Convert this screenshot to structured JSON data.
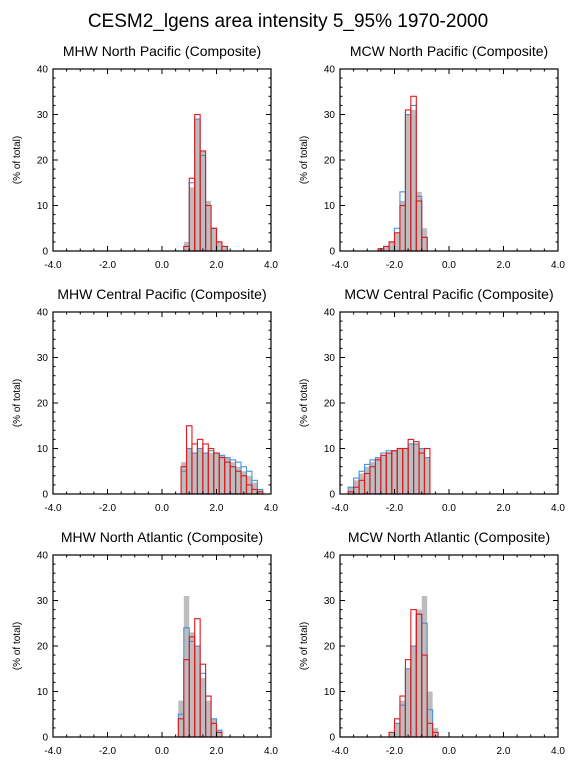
{
  "title": "CESM2_lgens area intensity 5_95% 1970-2000",
  "chart_data": [
    {
      "type": "histogram",
      "title": "MHW North Pacific (Composite)",
      "ylabel": "(% of total)",
      "xlim": [
        -4,
        4
      ],
      "ylim": [
        0,
        40
      ],
      "xticks": [
        "-4.0",
        "-2.0",
        "0.0",
        "2.0",
        "4.0"
      ],
      "yticks": [
        "0",
        "10",
        "20",
        "30",
        "40"
      ],
      "bin_start": 0.8,
      "bin_width": 0.2,
      "series": [
        {
          "color": "#bdbdbd",
          "values": [
            2,
            14,
            29,
            22,
            11,
            5,
            2,
            1
          ]
        },
        {
          "color": "#4a90d9",
          "values": [
            1,
            15,
            29,
            21,
            10,
            5,
            2,
            1
          ]
        },
        {
          "color": "#e0191c",
          "values": [
            1,
            16,
            30,
            22,
            10,
            5,
            2,
            1
          ]
        }
      ]
    },
    {
      "type": "histogram",
      "title": "MCW North Pacific (Composite)",
      "ylabel": "(% of total)",
      "xlim": [
        -4,
        4
      ],
      "ylim": [
        0,
        40
      ],
      "xticks": [
        "-4.0",
        "-2.0",
        "0.0",
        "2.0",
        "4.0"
      ],
      "yticks": [
        "0",
        "10",
        "20",
        "30",
        "40"
      ],
      "bin_start": -2.6,
      "bin_width": 0.2,
      "series": [
        {
          "color": "#bdbdbd",
          "values": [
            0.5,
            1,
            2,
            4,
            11,
            30,
            31,
            13,
            5
          ]
        },
        {
          "color": "#4a90d9",
          "values": [
            0.5,
            1,
            2,
            5,
            13,
            30,
            32,
            12,
            3
          ]
        },
        {
          "color": "#e0191c",
          "values": [
            0.5,
            1,
            2,
            4,
            10,
            31,
            34,
            11,
            3
          ]
        }
      ]
    },
    {
      "type": "histogram",
      "title": "MHW Central Pacific (Composite)",
      "ylabel": "(% of total)",
      "xlim": [
        -4,
        4
      ],
      "ylim": [
        0,
        40
      ],
      "xticks": [
        "-4.0",
        "-2.0",
        "0.0",
        "2.0",
        "4.0"
      ],
      "yticks": [
        "0",
        "10",
        "20",
        "30",
        "40"
      ],
      "bin_start": 0.7,
      "bin_width": 0.2,
      "series": [
        {
          "color": "#bdbdbd",
          "values": [
            7,
            10,
            9,
            10,
            9,
            9,
            9,
            8.5,
            8,
            7,
            6,
            5,
            4,
            2.5,
            1
          ]
        },
        {
          "color": "#4a90d9",
          "values": [
            5,
            10,
            9,
            10,
            9,
            9.5,
            9,
            8.5,
            8,
            7.5,
            7,
            6,
            5,
            3,
            1
          ]
        },
        {
          "color": "#e0191c",
          "values": [
            6,
            15,
            11,
            12,
            11,
            10,
            9,
            8,
            7,
            6,
            5,
            4,
            2,
            1,
            0.5
          ]
        }
      ]
    },
    {
      "type": "histogram",
      "title": "MCW Central Pacific (Composite)",
      "ylabel": "(% of total)",
      "xlim": [
        -4,
        4
      ],
      "ylim": [
        0,
        40
      ],
      "xticks": [
        "-4.0",
        "-2.0",
        "0.0",
        "2.0",
        "4.0"
      ],
      "yticks": [
        "0",
        "10",
        "20",
        "30",
        "40"
      ],
      "bin_start": -3.7,
      "bin_width": 0.2,
      "series": [
        {
          "color": "#bdbdbd",
          "values": [
            1.5,
            3,
            4.5,
            6,
            7,
            8,
            8.5,
            9,
            9.5,
            10,
            10,
            11,
            11,
            10,
            8
          ]
        },
        {
          "color": "#4a90d9",
          "values": [
            1.5,
            3.5,
            5,
            6.5,
            7.5,
            8,
            9,
            9.5,
            9.5,
            10,
            10,
            11,
            11,
            10,
            8
          ]
        },
        {
          "color": "#e0191c",
          "values": [
            0.5,
            1.5,
            3,
            4.5,
            6,
            7.5,
            8.5,
            9,
            9.5,
            10,
            10,
            12,
            11.5,
            9,
            10
          ]
        }
      ]
    },
    {
      "type": "histogram",
      "title": "MHW North Atlantic (Composite)",
      "ylabel": "(% of total)",
      "xlim": [
        -4,
        4
      ],
      "ylim": [
        0,
        40
      ],
      "xticks": [
        "-4.0",
        "-2.0",
        "0.0",
        "2.0",
        "4.0"
      ],
      "yticks": [
        "0",
        "10",
        "20",
        "30",
        "40"
      ],
      "bin_start": 0.6,
      "bin_width": 0.2,
      "series": [
        {
          "color": "#bdbdbd",
          "values": [
            8,
            31,
            23,
            20,
            13,
            8,
            4,
            1.5
          ]
        },
        {
          "color": "#4a90d9",
          "values": [
            5,
            24,
            21,
            20,
            14,
            9,
            4,
            1.5
          ]
        },
        {
          "color": "#e0191c",
          "values": [
            4,
            17,
            22,
            26,
            16,
            9,
            3,
            1
          ]
        }
      ]
    },
    {
      "type": "histogram",
      "title": "MCW North Atlantic (Composite)",
      "ylabel": "(% of total)",
      "xlim": [
        -4,
        4
      ],
      "ylim": [
        0,
        40
      ],
      "xticks": [
        "-4.0",
        "-2.0",
        "0.0",
        "2.0",
        "4.0"
      ],
      "yticks": [
        "0",
        "10",
        "20",
        "30",
        "40"
      ],
      "bin_start": -2.2,
      "bin_width": 0.2,
      "series": [
        {
          "color": "#bdbdbd",
          "values": [
            1,
            3,
            8,
            15,
            20,
            28,
            31,
            10,
            2
          ]
        },
        {
          "color": "#4a90d9",
          "values": [
            1,
            3,
            7,
            15,
            20,
            27,
            25,
            6,
            1
          ]
        },
        {
          "color": "#e0191c",
          "values": [
            1,
            4,
            9,
            17,
            28,
            27,
            18,
            3,
            1
          ]
        }
      ]
    }
  ]
}
